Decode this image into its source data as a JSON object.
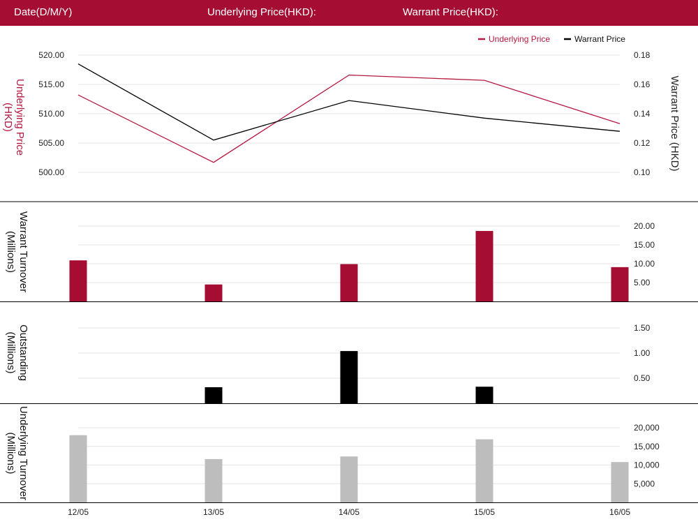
{
  "header": {
    "date_label": "Date(D/M/Y)",
    "underlying_label": "Underlying Price(HKD):",
    "warrant_label": "Warrant Price(HKD):"
  },
  "colors": {
    "brand": "#a50e32",
    "underlying": "#b5173f",
    "warrant": "#000000",
    "underlying_turnover": "#bdbdbd",
    "grid": "#e3e3e3"
  },
  "chart_data": [
    {
      "type": "line",
      "title": "",
      "x": [
        "12/05",
        "13/05",
        "14/05",
        "15/05",
        "16/05"
      ],
      "legend": {
        "placement": "top-right"
      },
      "series": [
        {
          "name": "Underlying Price",
          "axis": "left",
          "color": "#b5173f",
          "values": [
            513.2,
            501.7,
            516.6,
            515.7,
            508.3
          ]
        },
        {
          "name": "Warrant Price",
          "axis": "right",
          "color": "#000000",
          "values": [
            0.174,
            0.122,
            0.149,
            0.137,
            0.128
          ]
        }
      ],
      "ylabel_left": "Underlying Price (HKD)",
      "ylabel_right": "Warrant  Price (HKD)",
      "ylim_left": [
        500,
        520
      ],
      "ylim_right": [
        0.1,
        0.18
      ],
      "yticks_left": [
        "500.00",
        "505.00",
        "510.00",
        "515.00",
        "520.00"
      ],
      "yticks_right": [
        "0.10",
        "0.12",
        "0.14",
        "0.16",
        "0.18"
      ],
      "grid": true
    },
    {
      "type": "bar",
      "x": [
        "12/05",
        "13/05",
        "14/05",
        "15/05",
        "16/05"
      ],
      "values": [
        10.9,
        4.5,
        9.9,
        18.7,
        9.1
      ],
      "ylabel": "Warrant  Turnover (Millions)",
      "ylim": [
        0,
        20
      ],
      "yticks": [
        "5.00",
        "10.00",
        "15.00",
        "20.00"
      ],
      "color": "#a50e32",
      "grid": true
    },
    {
      "type": "bar",
      "x": [
        "12/05",
        "13/05",
        "14/05",
        "15/05",
        "16/05"
      ],
      "values": [
        0,
        0.32,
        1.04,
        0.33,
        0
      ],
      "ylabel": "Outstanding (Millions)",
      "ylim": [
        0,
        1.5
      ],
      "yticks": [
        "0.50",
        "1.00",
        "1.50"
      ],
      "color": "#000000",
      "grid": true
    },
    {
      "type": "bar",
      "x": [
        "12/05",
        "13/05",
        "14/05",
        "15/05",
        "16/05"
      ],
      "values": [
        18000,
        11600,
        12300,
        16900,
        10800
      ],
      "ylabel": "Underlying Turnover (Millions)",
      "ylim": [
        0,
        20000
      ],
      "yticks": [
        "5,000",
        "10,000",
        "15,000",
        "20,000"
      ],
      "color": "#bdbdbd",
      "grid": true
    }
  ]
}
